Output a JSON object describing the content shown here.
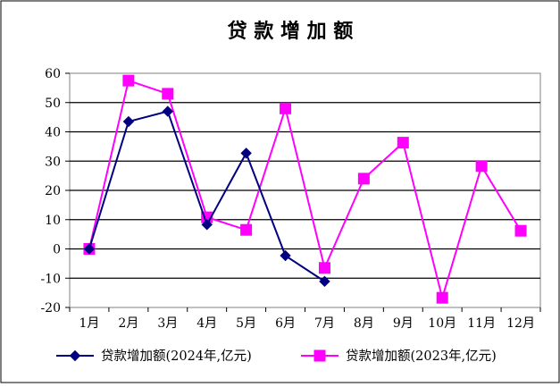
{
  "chart_data": {
    "type": "line",
    "title": "贷 款 增 加 额",
    "xlabel": "",
    "ylabel": "",
    "categories": [
      "1月",
      "2月",
      "3月",
      "4月",
      "5月",
      "6月",
      "7月",
      "8月",
      "9月",
      "10月",
      "11月",
      "12月"
    ],
    "ylim": [
      -20,
      60
    ],
    "yticks": [
      "60",
      "50",
      "40",
      "30",
      "20",
      "10",
      "0",
      "-10",
      "-20"
    ],
    "ytick_values": [
      60,
      50,
      40,
      30,
      20,
      10,
      0,
      -10,
      -20
    ],
    "grid": true,
    "legend_position": "bottom",
    "series": [
      {
        "name": "贷款增加额(2024年,亿元)",
        "values": [
          0,
          43.5,
          47,
          8.3,
          32.7,
          -2.3,
          -11.1,
          null,
          null,
          null,
          null,
          null
        ],
        "color": "#000080",
        "marker": "diamond"
      },
      {
        "name": "贷款增加额(2023年,亿元)",
        "values": [
          0,
          57.5,
          53,
          10.8,
          6.5,
          48,
          -6.5,
          24,
          36.3,
          -16.7,
          28.3,
          6.2
        ],
        "color": "#ff00ff",
        "marker": "square"
      }
    ]
  }
}
